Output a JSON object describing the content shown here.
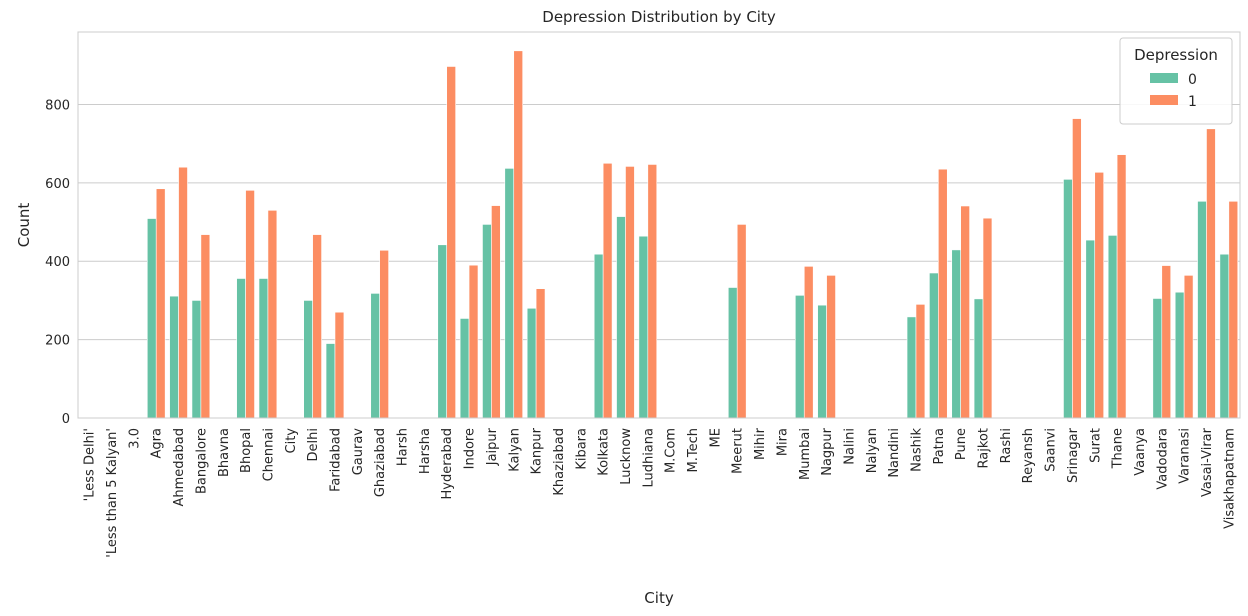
{
  "chart_data": {
    "type": "bar",
    "title": "Depression Distribution by City",
    "xlabel": "City",
    "ylabel": "Count",
    "ylim": [
      0,
      985
    ],
    "yticks": [
      0,
      200,
      400,
      600,
      800
    ],
    "grid": "horizontal",
    "legend": {
      "title": "Depression",
      "placement": "top-right"
    },
    "categories": [
      "'Less Delhi'",
      "'Less than 5 Kalyan'",
      "3.0",
      "Agra",
      "Ahmedabad",
      "Bangalore",
      "Bhavna",
      "Bhopal",
      "Chennai",
      "City",
      "Delhi",
      "Faridabad",
      "Gaurav",
      "Ghaziabad",
      "Harsh",
      "Harsha",
      "Hyderabad",
      "Indore",
      "Jaipur",
      "Kalyan",
      "Kanpur",
      "Khaziabad",
      "Kibara",
      "Kolkata",
      "Lucknow",
      "Ludhiana",
      "M.Com",
      "M.Tech",
      "ME",
      "Meerut",
      "Mihir",
      "Mira",
      "Mumbai",
      "Nagpur",
      "Nalini",
      "Nalyan",
      "Nandini",
      "Nashik",
      "Patna",
      "Pune",
      "Rajkot",
      "Rashi",
      "Reyansh",
      "Saanvi",
      "Srinagar",
      "Surat",
      "Thane",
      "Vaanya",
      "Vadodara",
      "Varanasi",
      "Vasai-Virar",
      "Visakhapatnam"
    ],
    "series": [
      {
        "name": "0",
        "color": "#66c2a5",
        "values": [
          0,
          0,
          1,
          509,
          311,
          300,
          0,
          356,
          356,
          0,
          300,
          190,
          0,
          318,
          0,
          0,
          442,
          254,
          494,
          637,
          280,
          1,
          0,
          418,
          514,
          464,
          0,
          0,
          0,
          333,
          0,
          0,
          313,
          288,
          0,
          1,
          0,
          258,
          370,
          429,
          304,
          0,
          0,
          0,
          609,
          454,
          466,
          0,
          305,
          321,
          553,
          418
        ]
      },
      {
        "name": "1",
        "color": "#fc8d62",
        "values": [
          1,
          1,
          0,
          585,
          640,
          468,
          1,
          581,
          530,
          1,
          468,
          270,
          1,
          428,
          1,
          1,
          897,
          390,
          542,
          937,
          330,
          0,
          1,
          650,
          642,
          647,
          1,
          1,
          1,
          494,
          1,
          1,
          387,
          364,
          1,
          0,
          1,
          290,
          635,
          541,
          510,
          1,
          1,
          1,
          764,
          627,
          672,
          1,
          389,
          364,
          738,
          553
        ]
      }
    ]
  }
}
